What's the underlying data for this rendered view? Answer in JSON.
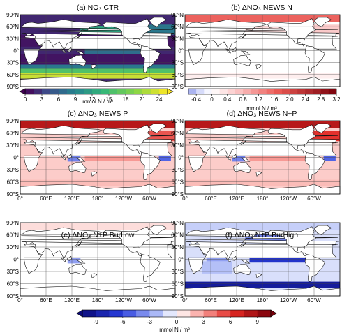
{
  "chart_data": [
    {
      "type": "heatmap",
      "panel": "a",
      "title": "(a) NO₃ CTR",
      "colorbar": {
        "ticks": [
          "0",
          "3",
          "6",
          "9",
          "12",
          "15",
          "18",
          "21",
          "24"
        ],
        "vmin": 0,
        "vmax": 25.5,
        "label": "mmol N / m³",
        "scale": "viridis",
        "extend": "both"
      },
      "fields": [
        {
          "region": "Southern Ocean",
          "value": 23
        },
        {
          "region": "Subpolar Southern Ocean",
          "value": 16
        },
        {
          "region": "Southern mid-latitudes",
          "value": 8
        },
        {
          "region": "Subtropical gyres",
          "value": 1
        },
        {
          "region": "Equatorial Pacific",
          "value": 7
        },
        {
          "region": "North Pacific",
          "value": 12
        },
        {
          "region": "Arabian Sea",
          "value": 5
        },
        {
          "region": "North Atlantic",
          "value": 8
        }
      ]
    },
    {
      "type": "heatmap",
      "panel": "b",
      "title": "(b) ΔNO₃ NEWS N",
      "colorbar": {
        "ticks": [
          "-0.4",
          "0",
          "0.4",
          "0.8",
          "1.2",
          "1.6",
          "2.0",
          "2.4",
          "2.8",
          "3.2"
        ],
        "vmin": -0.6,
        "vmax": 3.2,
        "label": "mmol N / m³",
        "scale": "white-red",
        "extend": "none"
      },
      "fields": [
        {
          "region": "Arctic",
          "value": 1.6
        },
        {
          "region": "North Pacific",
          "value": 0.4
        },
        {
          "region": "North Atlantic",
          "value": 0.6
        },
        {
          "region": "Southern Ocean",
          "value": 0.2
        }
      ]
    },
    {
      "type": "heatmap",
      "panel": "c",
      "title": "(c) ΔNO₃ NEWS P",
      "colorbar": {
        "ticks": [
          "-9",
          "-6",
          "-3",
          "0",
          "3",
          "6",
          "9"
        ],
        "vmin": -10.5,
        "vmax": 10.5,
        "label": "mmol N / m³",
        "scale": "blue-white-red",
        "extend": "both"
      },
      "fields": [
        {
          "region": "Arctic",
          "value": 8
        },
        {
          "region": "North Atlantic",
          "value": 5
        },
        {
          "region": "Equatorial Pacific",
          "value": 3
        },
        {
          "region": "Equatorial Atlantic",
          "value": -5
        },
        {
          "region": "Indonesian Seas",
          "value": -4
        },
        {
          "region": "Southern Ocean",
          "value": 2
        }
      ]
    },
    {
      "type": "heatmap",
      "panel": "d",
      "title": "(d) ΔNO₃ NEWS N+P",
      "colorbar": {
        "ticks": [
          "-9",
          "-6",
          "-3",
          "0",
          "3",
          "6",
          "9"
        ],
        "vmin": -10.5,
        "vmax": 10.5,
        "label": "mmol N / m³",
        "scale": "blue-white-red",
        "extend": "both"
      },
      "fields": [
        {
          "region": "Arctic",
          "value": 8
        },
        {
          "region": "North Atlantic",
          "value": 6
        },
        {
          "region": "Equatorial Pacific",
          "value": 3
        },
        {
          "region": "Equatorial Atlantic",
          "value": -5
        },
        {
          "region": "Indonesian Seas",
          "value": -4
        },
        {
          "region": "Southern Ocean",
          "value": 2
        }
      ]
    },
    {
      "type": "heatmap",
      "panel": "e",
      "title": "(e) ΔNO₃ N+P BurLow",
      "colorbar": {
        "ticks": [
          "-9",
          "-6",
          "-3",
          "0",
          "3",
          "6",
          "9"
        ],
        "vmin": -10.5,
        "vmax": 10.5,
        "label": "mmol N / m³",
        "scale": "blue-white-red",
        "extend": "both"
      },
      "fields": [
        {
          "region": "Indonesian Seas",
          "value": -3
        },
        {
          "region": "Arabian Sea",
          "value": -2
        },
        {
          "region": "Arctic",
          "value": 1
        }
      ]
    },
    {
      "type": "heatmap",
      "panel": "f",
      "title": "(f) ΔNO₃ N+P BurHigh",
      "colorbar": {
        "ticks": [
          "-9",
          "-6",
          "-3",
          "0",
          "3",
          "6",
          "9"
        ],
        "vmin": -10.5,
        "vmax": 10.5,
        "label": "mmol N / m³",
        "scale": "blue-white-red",
        "extend": "both"
      },
      "fields": [
        {
          "region": "Southern Ocean",
          "value": -9
        },
        {
          "region": "Equatorial Pacific",
          "value": -7
        },
        {
          "region": "North Pacific",
          "value": -4
        },
        {
          "region": "Northern Indian Ocean",
          "value": -3
        },
        {
          "region": "Indian Ocean",
          "value": -2
        },
        {
          "region": "Arctic",
          "value": -1.5
        }
      ]
    }
  ],
  "axes": {
    "lat_ticks": [
      "90°N",
      "60°N",
      "30°N",
      "0°",
      "30°S",
      "60°S",
      "90°S"
    ],
    "lon_ticks": [
      "0°",
      "60°E",
      "120°E",
      "180°",
      "120°W",
      "60°W"
    ]
  },
  "colors": {
    "land": "#ffffff",
    "coast": "#111111",
    "grid": "#444444"
  }
}
